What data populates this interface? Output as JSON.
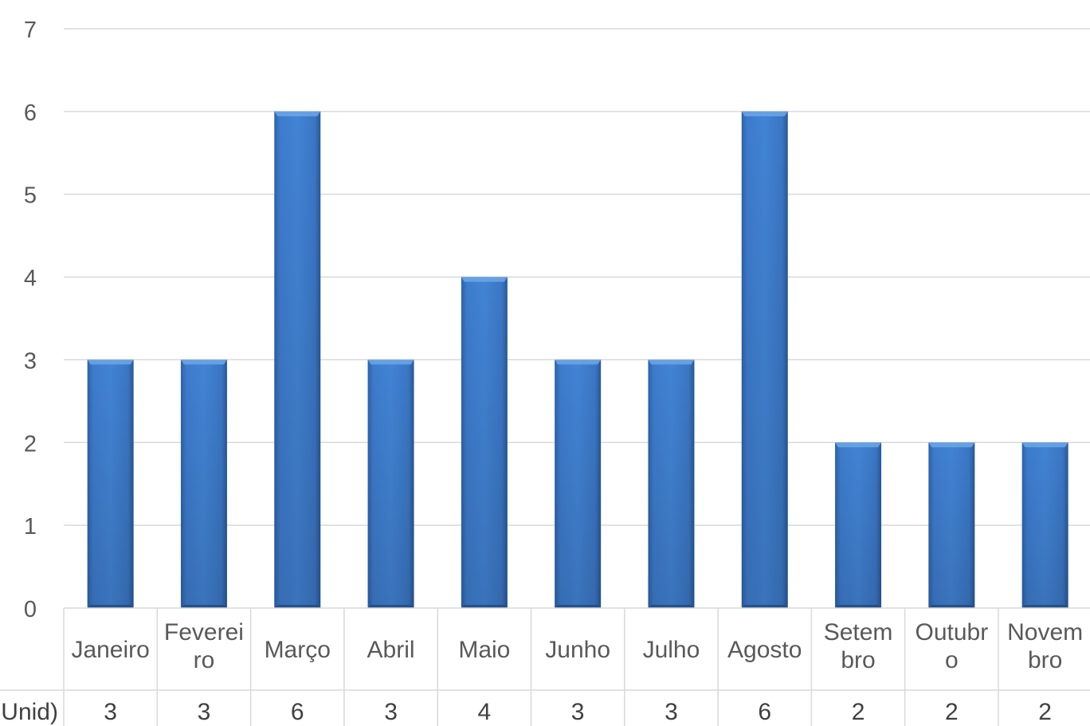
{
  "chart_data": {
    "type": "bar",
    "categories": [
      [
        "Janeiro"
      ],
      [
        "Feverei",
        "ro"
      ],
      [
        "Março"
      ],
      [
        "Abril"
      ],
      [
        "Maio"
      ],
      [
        "Junho"
      ],
      [
        "Julho"
      ],
      [
        "Agosto"
      ],
      [
        "Setem",
        "bro"
      ],
      [
        "Outubr",
        "o"
      ],
      [
        "Novem",
        "bro"
      ]
    ],
    "series": [
      {
        "name": "Unid)",
        "values": [
          3,
          3,
          6,
          3,
          4,
          3,
          3,
          6,
          2,
          2,
          2
        ]
      }
    ],
    "ylim": [
      0,
      7
    ],
    "yticks": [
      0,
      1,
      2,
      3,
      4,
      5,
      6,
      7
    ],
    "grid": true,
    "data_table": true,
    "colors": {
      "bar": "#3a78c9",
      "bar_dark": "#2b5c9c",
      "bar_light": "#5b95dc",
      "grid": "#d9d9d9",
      "text": "#595959"
    }
  }
}
